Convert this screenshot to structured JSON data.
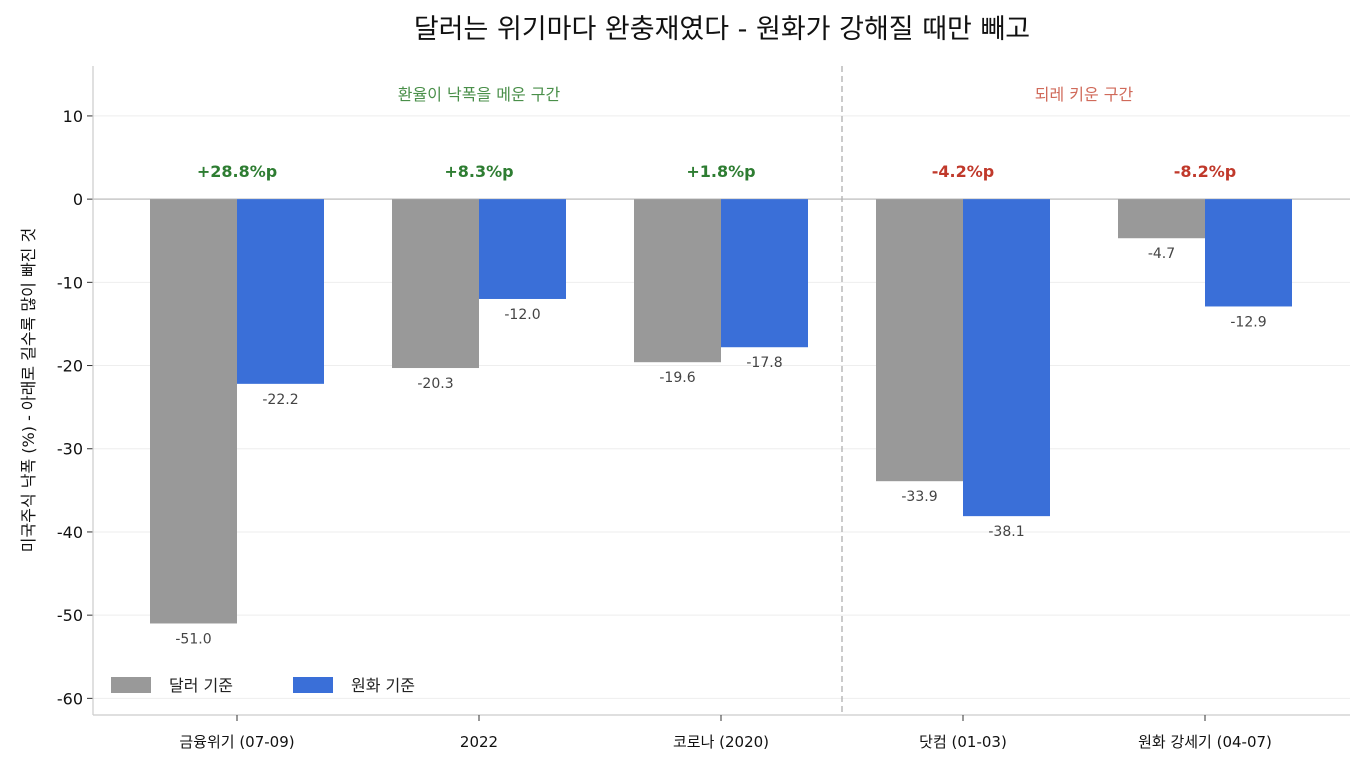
{
  "chart_data": {
    "type": "bar",
    "title": "달러는 위기마다 완충재였다 - 원화가 강해질 때만 빼고",
    "ylabel": "미국주식 낙폭 (%)  - 아래로 길수록 많이 빠진 것",
    "ylim": [
      -62,
      16
    ],
    "yticks": [
      10,
      0,
      -10,
      -20,
      -30,
      -40,
      -50,
      -60
    ],
    "grid": true,
    "legend_position": "lower-left",
    "categories": [
      "금융위기 (07-09)",
      "2022",
      "코로나 (2020)",
      "닷컴 (01-03)",
      "원화 강세기 (04-07)"
    ],
    "series": [
      {
        "name": "달러 기준",
        "color": "#999999",
        "values": [
          -51.0,
          -20.3,
          -19.6,
          -33.9,
          -4.7
        ]
      },
      {
        "name": "원화 기준",
        "color": "#3a6fd8",
        "values": [
          -22.2,
          -12.0,
          -17.8,
          -38.1,
          -12.9
        ]
      }
    ],
    "value_labels": [
      [
        "-51.0",
        "-20.3",
        "-19.6",
        "-33.9",
        "-4.7"
      ],
      [
        "-22.2",
        "-12.0",
        "-17.8",
        "-38.1",
        "-12.9"
      ]
    ],
    "difference_labels": [
      "+28.8%p",
      "+8.3%p",
      "+1.8%p",
      "-4.2%p",
      "-8.2%p"
    ],
    "difference_colors": [
      "#2e7d32",
      "#2e7d32",
      "#2e7d32",
      "#c0392b",
      "#c0392b"
    ],
    "regions": [
      {
        "label": "환율이 낙폭을 메운 구간",
        "color": "#4a8f4a",
        "categories": [
          0,
          1,
          2
        ]
      },
      {
        "label": "되레 키운 구간",
        "color": "#d06a5a",
        "categories": [
          3,
          4
        ]
      }
    ]
  }
}
